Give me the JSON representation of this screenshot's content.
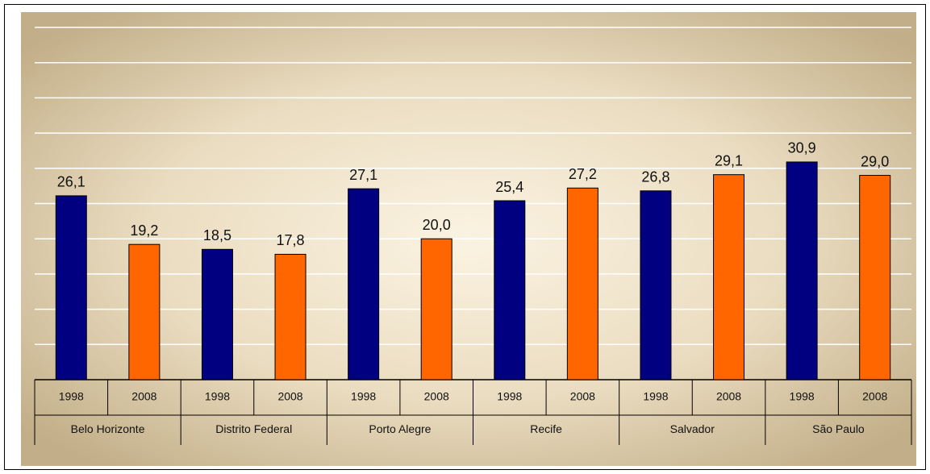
{
  "chart_data": {
    "type": "bar",
    "categories": [
      "Belo Horizonte",
      "Distrito Federal",
      "Porto Alegre",
      "Recife",
      "Salvador",
      "São Paulo"
    ],
    "series": [
      {
        "name": "1998",
        "color": "#000080",
        "values": [
          26.1,
          18.5,
          27.1,
          25.4,
          26.8,
          30.9
        ],
        "value_labels": [
          "26,1",
          "18,5",
          "27,1",
          "25,4",
          "26,8",
          "30,9"
        ]
      },
      {
        "name": "2008",
        "color": "#ff6600",
        "values": [
          19.2,
          17.8,
          20.0,
          27.2,
          29.1,
          29.0
        ],
        "value_labels": [
          "19,2",
          "17,8",
          "20,0",
          "27,2",
          "29,1",
          "29,0"
        ]
      }
    ],
    "ylim": [
      0,
      50
    ],
    "yticks": [
      5,
      10,
      15,
      20,
      25,
      30,
      35,
      40,
      45,
      50
    ],
    "grid": true
  }
}
